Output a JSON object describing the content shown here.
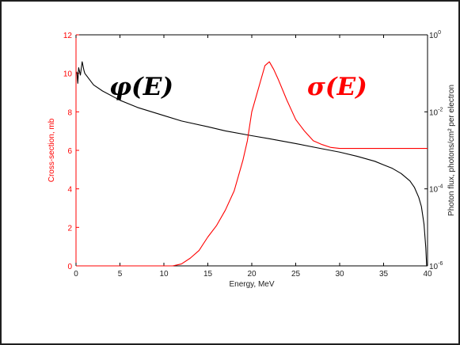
{
  "chart_data": {
    "type": "line",
    "xlabel": "Energy, MeV",
    "xlim": [
      0,
      40
    ],
    "x_ticks": [
      "0",
      "5",
      "10",
      "15",
      "20",
      "25",
      "30",
      "35",
      "40"
    ],
    "y_left": {
      "label": "Cross-section, mb",
      "ylim": [
        0,
        12
      ],
      "ticks": [
        "0",
        "2",
        "4",
        "6",
        "8",
        "10",
        "12"
      ],
      "color": "#ff0000"
    },
    "y_right": {
      "label": "Photon flux, photons/cm² per electron",
      "scale": "log",
      "ylim": [
        1e-06,
        1
      ],
      "ticks": [
        {
          "base": "10",
          "exp": "-6"
        },
        {
          "base": "10",
          "exp": "-4"
        },
        {
          "base": "10",
          "exp": "-2"
        },
        {
          "base": "10",
          "exp": "0"
        }
      ],
      "color": "#000000"
    },
    "grid": false,
    "annotations": [
      {
        "text": "φ(E)",
        "color": "#000000"
      },
      {
        "text": "σ(E)",
        "color": "#ff0000"
      }
    ],
    "series": [
      {
        "axis": "right",
        "color": "#000000",
        "x": [
          0.1,
          0.2,
          0.3,
          0.5,
          0.7,
          0.9,
          1,
          2,
          3,
          5,
          7,
          10,
          12,
          15,
          17,
          20,
          22,
          25,
          28,
          30,
          32,
          34,
          35,
          36,
          37,
          38,
          38.5,
          39,
          39.3,
          39.6,
          39.8,
          39.9
        ],
        "y": [
          0.11,
          0.055,
          0.14,
          0.09,
          0.2,
          0.12,
          0.1,
          0.05,
          0.035,
          0.02,
          0.013,
          0.008,
          0.0058,
          0.0041,
          0.0032,
          0.0024,
          0.002,
          0.0015,
          0.0011,
          0.0009,
          0.0007,
          0.00052,
          0.00042,
          0.00034,
          0.00025,
          0.00016,
          0.00011,
          6e-05,
          3.5e-05,
          1.2e-05,
          3e-06,
          1e-06
        ]
      },
      {
        "axis": "left",
        "color": "#ff0000",
        "x": [
          0,
          8,
          10,
          11,
          12,
          13,
          14,
          15,
          16,
          17,
          18,
          19,
          19.5,
          20,
          21,
          21.5,
          22,
          22.5,
          23,
          24,
          25,
          26,
          27,
          28,
          29,
          30,
          32,
          40
        ],
        "y": [
          0,
          0,
          0,
          0,
          0.1,
          0.4,
          0.8,
          1.5,
          2.1,
          2.9,
          3.9,
          5.5,
          6.5,
          8.0,
          9.6,
          10.4,
          10.6,
          10.2,
          9.7,
          8.6,
          7.6,
          7.0,
          6.5,
          6.3,
          6.15,
          6.1,
          6.1,
          6.1
        ]
      }
    ]
  }
}
